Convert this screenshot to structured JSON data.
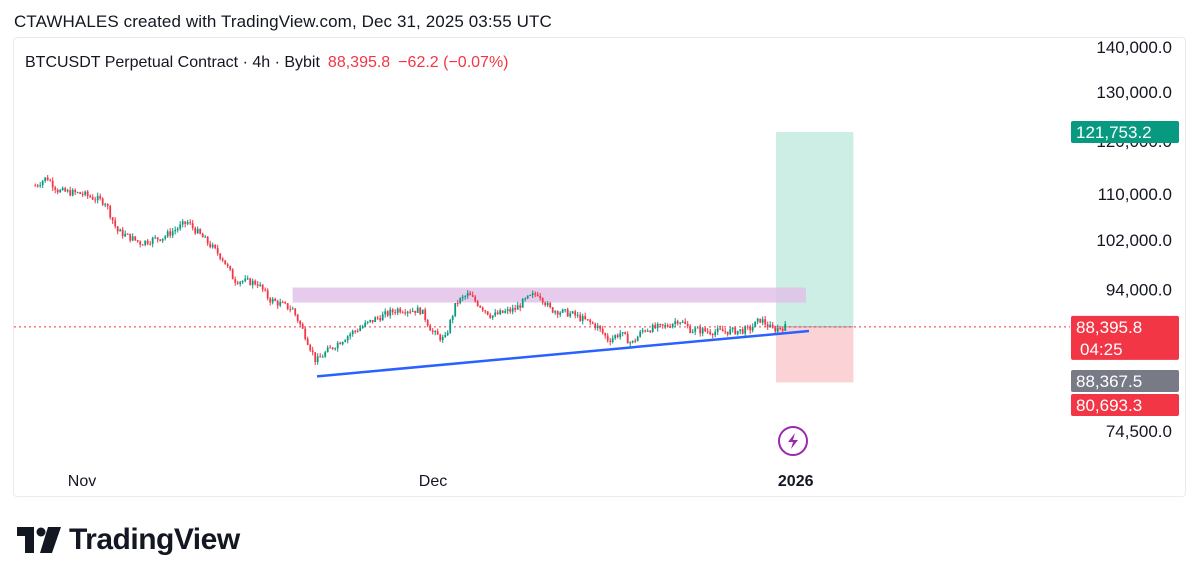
{
  "header": {
    "attribution": "CTAWHALES created with TradingView.com, Dec 31, 2025 03:55 UTC"
  },
  "legend": {
    "symbol": "BTCUSDT Perpetual Contract · 4h · Bybit",
    "price": "88,395.8",
    "change": "−62.2 (−0.07%)"
  },
  "colors": {
    "up": "#089981",
    "down": "#f23645",
    "trendline": "#2962ff",
    "resistance_zone": "#e1bee7",
    "profit_zone": "#cdeee4",
    "loss_zone": "#fbd3d6",
    "price_line": "#f23645",
    "grey_tag": "#787b86"
  },
  "footer": {
    "brand": "TradingView",
    "logo_icon": "tradingview-logo-icon"
  },
  "chart_data": {
    "type": "candlestick",
    "timeframe": "4h",
    "symbol": "BTCUSDT Perpetual Contract",
    "exchange": "Bybit",
    "y_axis": {
      "scale": "log",
      "ticks": [
        {
          "value": 140000,
          "label": "140,000.0"
        },
        {
          "value": 130000,
          "label": "130,000.0"
        },
        {
          "value": 120000,
          "label": "120,000.0"
        },
        {
          "value": 110000,
          "label": "110,000.0"
        },
        {
          "value": 102000,
          "label": "102,000.0"
        },
        {
          "value": 94000,
          "label": "94,000.0"
        },
        {
          "value": 74500,
          "label": "74,500.0"
        }
      ]
    },
    "x_axis": {
      "ticks": [
        {
          "date": "2025-11-01",
          "label": "Nov"
        },
        {
          "date": "2025-12-01",
          "label": "Dec"
        },
        {
          "date": "2026-01-01",
          "label": "2026"
        }
      ]
    },
    "price_tags": [
      {
        "value": 121753.2,
        "label": "121,753.2",
        "color": "#089981"
      },
      {
        "value": 88395.8,
        "label": "88,395.8",
        "sub": "04:25",
        "color": "#f23645"
      },
      {
        "value": 88367.5,
        "label": "88,367.5",
        "color": "#787b86"
      },
      {
        "value": 80693.3,
        "label": "80,693.3",
        "color": "#f23645"
      }
    ],
    "path": [
      [
        "2025-10-28",
        111500
      ],
      [
        "2025-10-29",
        113000
      ],
      [
        "2025-10-30",
        110500
      ],
      [
        "2025-11-01",
        110000
      ],
      [
        "2025-11-03",
        108500
      ],
      [
        "2025-11-04",
        103500
      ],
      [
        "2025-11-06",
        101500
      ],
      [
        "2025-11-08",
        102500
      ],
      [
        "2025-11-10",
        105000
      ],
      [
        "2025-11-11",
        103000
      ],
      [
        "2025-11-13",
        99000
      ],
      [
        "2025-11-14",
        95500
      ],
      [
        "2025-11-16",
        95000
      ],
      [
        "2025-11-17",
        92500
      ],
      [
        "2025-11-19",
        91000
      ],
      [
        "2025-11-20",
        87500
      ],
      [
        "2025-11-21",
        83500
      ],
      [
        "2025-11-22",
        85000
      ],
      [
        "2025-11-24",
        87500
      ],
      [
        "2025-11-26",
        89500
      ],
      [
        "2025-11-28",
        91000
      ],
      [
        "2025-11-30",
        90800
      ],
      [
        "2025-12-01",
        87500
      ],
      [
        "2025-12-02",
        86500
      ],
      [
        "2025-12-03",
        92000
      ],
      [
        "2025-12-04",
        93200
      ],
      [
        "2025-12-06",
        90000
      ],
      [
        "2025-12-08",
        91000
      ],
      [
        "2025-12-09",
        92500
      ],
      [
        "2025-12-10",
        93500
      ],
      [
        "2025-12-11",
        91000
      ],
      [
        "2025-12-13",
        90200
      ],
      [
        "2025-12-15",
        88500
      ],
      [
        "2025-12-16",
        86500
      ],
      [
        "2025-12-17",
        87500
      ],
      [
        "2025-12-18",
        86000
      ],
      [
        "2025-12-19",
        88000
      ],
      [
        "2025-12-21",
        88500
      ],
      [
        "2025-12-22",
        89500
      ],
      [
        "2025-12-23",
        88000
      ],
      [
        "2025-12-25",
        87700
      ],
      [
        "2025-12-27",
        87800
      ],
      [
        "2025-12-28",
        88000
      ],
      [
        "2025-12-29",
        89500
      ],
      [
        "2025-12-30",
        88000
      ],
      [
        "2025-12-31",
        88395.8
      ]
    ],
    "drawings": {
      "resistance_zone": {
        "from": "2025-11-19",
        "to": "2025-12-31",
        "low": 92000,
        "high": 94300
      },
      "support_trendline": {
        "start": [
          "2025-11-21",
          81500
        ],
        "end": [
          "2025-12-31",
          87800
        ]
      },
      "long_position": {
        "from": "2025-12-31",
        "to": "2026-01-02",
        "entry": 88395.8,
        "target": 121753.2,
        "stop": 80693.3
      },
      "marker_icon": "lightning-icon"
    }
  }
}
